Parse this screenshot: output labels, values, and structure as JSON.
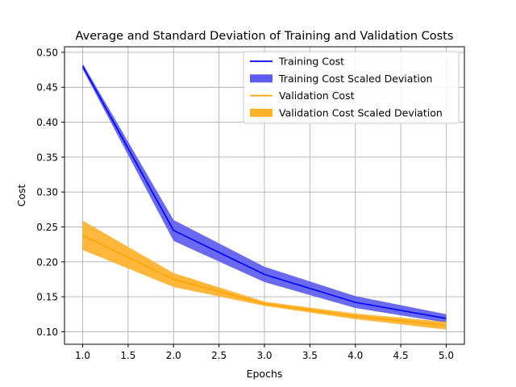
{
  "chart_data": {
    "type": "line",
    "title": "Average and Standard Deviation of Training and Validation Costs",
    "xlabel": "Epochs",
    "ylabel": "Cost",
    "x": [
      1,
      2,
      3,
      4,
      5
    ],
    "xlim": [
      0.8,
      5.2
    ],
    "ylim": [
      0.082,
      0.508
    ],
    "xticks": [
      1.0,
      1.5,
      2.0,
      2.5,
      3.0,
      3.5,
      4.0,
      4.5,
      5.0
    ],
    "xtick_labels": [
      "1.0",
      "1.5",
      "2.0",
      "2.5",
      "3.0",
      "3.5",
      "4.0",
      "4.5",
      "5.0"
    ],
    "yticks": [
      0.1,
      0.15,
      0.2,
      0.25,
      0.3,
      0.35,
      0.4,
      0.45,
      0.5
    ],
    "ytick_labels": [
      "0.10",
      "0.15",
      "0.20",
      "0.25",
      "0.30",
      "0.35",
      "0.40",
      "0.45",
      "0.50"
    ],
    "grid": true,
    "legend_position": "top-right",
    "series": [
      {
        "name": "Training Cost",
        "band_name": "Training Cost Scaled Deviation",
        "line_color": "#0000ff",
        "band_color": "#5c5cf0",
        "values": [
          0.48,
          0.245,
          0.182,
          0.142,
          0.119
        ],
        "upper": [
          0.484,
          0.26,
          0.193,
          0.151,
          0.125
        ],
        "lower": [
          0.476,
          0.23,
          0.171,
          0.134,
          0.113
        ]
      },
      {
        "name": "Validation Cost",
        "band_name": "Validation Cost Scaled Deviation",
        "line_color": "#ffa500",
        "band_color": "#ffb12b",
        "values": [
          0.238,
          0.175,
          0.14,
          0.122,
          0.109
        ],
        "upper": [
          0.259,
          0.184,
          0.143,
          0.126,
          0.114
        ],
        "lower": [
          0.217,
          0.164,
          0.137,
          0.118,
          0.103
        ]
      }
    ]
  }
}
